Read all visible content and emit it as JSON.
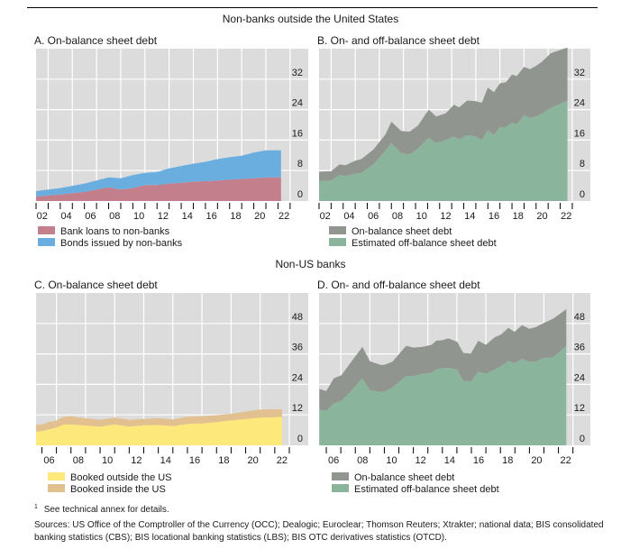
{
  "header": {
    "section_top": "Non-banks outside the United States",
    "section_bottom": "Non-US banks"
  },
  "footer": {
    "footnote_mark": "1",
    "footnote": "See technical annex for details.",
    "sources_line1": "Sources: US Office of the Comptroller of the Currency (OCC); Dealogic; Euroclear; Thomson Reuters; Xtrakter; national data; BIS consolidated",
    "sources_line2": "banking statistics (CBS); BIS locational banking statistics (LBS); BIS OTC derivatives statistics (OTCD)."
  },
  "chart_data": [
    {
      "type": "area",
      "stacked": true,
      "title": "A. On-balance sheet debt",
      "xlabel": "",
      "ylabel": "",
      "ylim": [
        0,
        40
      ],
      "yticks": [
        0,
        8,
        16,
        24,
        32
      ],
      "xlim": [
        2002,
        2024.5
      ],
      "xtick_labels": [
        "02",
        "04",
        "06",
        "08",
        "10",
        "12",
        "14",
        "16",
        "18",
        "20",
        "22"
      ],
      "grid": true,
      "legend": "bottom",
      "x": [
        2002,
        2004,
        2006,
        2007,
        2008,
        2009,
        2010,
        2011,
        2012,
        2013,
        2014,
        2015,
        2016,
        2017,
        2018,
        2019,
        2020,
        2021,
        2022.25
      ],
      "series": [
        {
          "name": "Bank loans to non-banks",
          "color": "#c47f8d",
          "values": [
            1.2,
            1.7,
            2.4,
            3.0,
            3.6,
            3.0,
            3.4,
            4.2,
            4.2,
            4.6,
            4.8,
            5.1,
            5.2,
            5.4,
            5.6,
            5.8,
            6.0,
            6.2,
            6.2
          ]
        },
        {
          "name": "Bonds issued by non-banks",
          "color": "#6aaee0",
          "values": [
            1.4,
            1.7,
            2.2,
            2.4,
            2.6,
            3.0,
            3.4,
            3.2,
            3.4,
            4.0,
            4.4,
            4.7,
            5.1,
            5.6,
            5.9,
            6.1,
            6.7,
            7.1,
            7.1
          ]
        }
      ]
    },
    {
      "type": "area",
      "stacked": true,
      "title": "B. On- and off-balance sheet debt",
      "xlabel": "",
      "ylabel": "",
      "ylim": [
        0,
        40
      ],
      "yticks": [
        0,
        8,
        16,
        24,
        32
      ],
      "xlim": [
        2002,
        2024.5
      ],
      "xtick_labels": [
        "02",
        "04",
        "06",
        "08",
        "10",
        "12",
        "14",
        "16",
        "18",
        "20",
        "22"
      ],
      "grid": true,
      "legend": "bottom",
      "x": [
        2002,
        2003,
        2003.7,
        2004.2,
        2005,
        2005.5,
        2006.5,
        2007.5,
        2008,
        2008.8,
        2009.5,
        2010.2,
        2011.1,
        2011.7,
        2012.5,
        2013.2,
        2013.6,
        2014.3,
        2015,
        2015.5,
        2016,
        2016.5,
        2017,
        2017.5,
        2018,
        2018.4,
        2019,
        2019.5,
        2020,
        2020.5,
        2021.2,
        2022.6
      ],
      "series": [
        {
          "name": "Estimated off-balance sheet debt",
          "color": "#8ab49b",
          "values": [
            5.2,
            5.4,
            6.8,
            6.6,
            7.2,
            7.4,
            9.6,
            13.2,
            15.2,
            12.6,
            12.2,
            13.8,
            16.6,
            15.2,
            16.0,
            17.0,
            16.2,
            17.3,
            17.0,
            16.0,
            18.6,
            17.4,
            19.4,
            19.4,
            20.6,
            20.2,
            22.6,
            21.8,
            22.2,
            23.0,
            24.4,
            26.4
          ]
        },
        {
          "name": "On-balance sheet debt",
          "color": "#90958f",
          "values": [
            2.5,
            2.4,
            2.8,
            2.8,
            3.4,
            3.6,
            3.9,
            4.3,
            5.6,
            5.8,
            6.0,
            6.0,
            7.4,
            7.0,
            7.0,
            8.3,
            8.4,
            9.1,
            9.2,
            9.8,
            11.2,
            11.2,
            11.5,
            11.8,
            12.6,
            12.6,
            12.6,
            12.8,
            13.3,
            13.6,
            14.4,
            13.9
          ]
        }
      ],
      "legend_order": [
        "On-balance sheet debt",
        "Estimated off-balance sheet debt"
      ]
    },
    {
      "type": "area",
      "stacked": true,
      "title": "C. On-balance sheet debt",
      "xlabel": "",
      "ylabel": "",
      "ylim": [
        0,
        60
      ],
      "yticks": [
        0,
        12,
        24,
        36,
        48
      ],
      "xlim": [
        2005.6,
        2024.3
      ],
      "xtick_labels": [
        "06",
        "08",
        "10",
        "12",
        "14",
        "16",
        "18",
        "20",
        "22"
      ],
      "grid": true,
      "legend": "bottom",
      "x": [
        2005.6,
        2006,
        2006.5,
        2007,
        2007.5,
        2008,
        2008.5,
        2009,
        2010,
        2011,
        2012,
        2013,
        2014,
        2015,
        2016,
        2017,
        2018,
        2019,
        2020,
        2021,
        2022,
        2022.5
      ],
      "series": [
        {
          "name": "Booked outside the US",
          "color": "#fde97b",
          "values": [
            5.4,
            5.6,
            6.3,
            7.0,
            8.2,
            8.2,
            8.0,
            7.8,
            7.4,
            8.2,
            7.4,
            7.9,
            8.0,
            7.6,
            8.4,
            8.6,
            9.2,
            9.8,
            10.4,
            10.9,
            11.1,
            11.2
          ]
        },
        {
          "name": "Booked inside the US",
          "color": "#e2c08f",
          "values": [
            2.6,
            2.6,
            2.9,
            2.8,
            3.0,
            3.3,
            2.9,
            2.9,
            2.6,
            2.7,
            2.6,
            2.5,
            2.7,
            2.6,
            2.8,
            2.9,
            2.7,
            2.6,
            2.9,
            3.2,
            3.1,
            2.9
          ]
        }
      ]
    },
    {
      "type": "area",
      "stacked": true,
      "title": "D. On- and off-balance sheet debt",
      "xlabel": "",
      "ylabel": "",
      "ylim": [
        0,
        60
      ],
      "yticks": [
        0,
        12,
        24,
        36,
        48
      ],
      "xlim": [
        2005.5,
        2024.2
      ],
      "xtick_labels": [
        "06",
        "08",
        "10",
        "12",
        "14",
        "16",
        "18",
        "20",
        "22"
      ],
      "grid": true,
      "legend": "bottom",
      "x": [
        2005.52,
        2006,
        2006.52,
        2007.04,
        2007.56,
        2008.49,
        2009.01,
        2009.73,
        2010.0,
        2010.56,
        2011.5,
        2012.02,
        2012.64,
        2013.26,
        2013.57,
        2013.99,
        2014.4,
        2015.02,
        2015.44,
        2015.96,
        2016.48,
        2017.0,
        2017.62,
        2018.03,
        2018.55,
        2018.97,
        2019.49,
        2020.0,
        2020.42,
        2020.94,
        2021.66,
        2022.54
      ],
      "series": [
        {
          "name": "Estimated off-balance sheet debt",
          "color": "#8ab49b",
          "values": [
            14,
            13.6,
            16.6,
            17.5,
            20.5,
            26.4,
            21.7,
            21.1,
            21.1,
            22.8,
            27.3,
            27.3,
            28.2,
            28.5,
            29.9,
            30.5,
            30.5,
            29.9,
            25.4,
            25.2,
            29,
            28.2,
            29.9,
            31.1,
            33.3,
            32.3,
            34.1,
            32.9,
            32.9,
            34.4,
            34.7,
            39.2
          ]
        },
        {
          "name": "On-balance sheet debt",
          "color": "#90958f",
          "values": [
            8.2,
            7.8,
            9.8,
            10.1,
            11.2,
            12.4,
            11.4,
            10.6,
            10.6,
            10.1,
            11.9,
            11.2,
            10.6,
            11.1,
            11.3,
            10.9,
            11.6,
            10.9,
            11.0,
            10.9,
            12.2,
            11.4,
            12.7,
            12.5,
            13.0,
            12.4,
            13.2,
            13.0,
            13.6,
            13.6,
            15.3,
            14.4
          ]
        }
      ],
      "legend_order": [
        "On-balance sheet debt",
        "Estimated off-balance sheet debt"
      ]
    }
  ]
}
